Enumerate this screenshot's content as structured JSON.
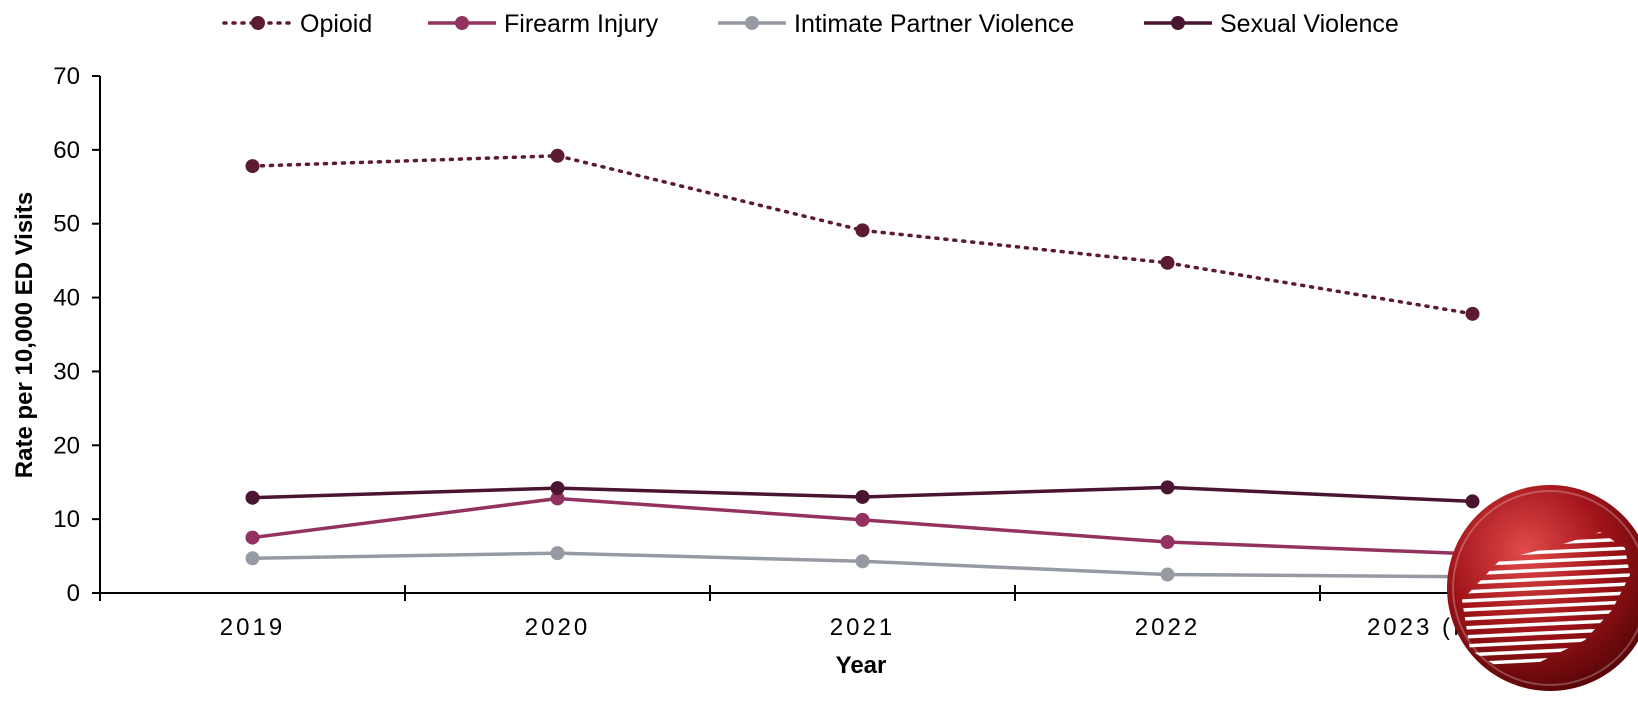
{
  "chart_data": {
    "type": "line",
    "title": "",
    "xlabel": "Year",
    "ylabel": "Rate per 10,000 ED Visits",
    "categories": [
      "2019",
      "2020",
      "2021",
      "2022",
      "2023 (first half)"
    ],
    "ylim": [
      0,
      70
    ],
    "yticks": [
      0,
      10,
      20,
      30,
      40,
      50,
      60,
      70
    ],
    "grid": false,
    "legend_position": "top-center",
    "series": [
      {
        "name": "Opioid",
        "values": [
          57.8,
          59.2,
          49.1,
          44.7,
          37.8
        ],
        "color": "#5c1a33",
        "dash": "dotted"
      },
      {
        "name": "Firearm Injury",
        "values": [
          7.5,
          12.8,
          9.9,
          6.9,
          5.3
        ],
        "color": "#93325f",
        "dash": "solid"
      },
      {
        "name": "Intimate Partner Violence",
        "values": [
          4.7,
          5.4,
          4.3,
          2.5,
          2.2
        ],
        "color": "#969ba3",
        "dash": "solid"
      },
      {
        "name": "Sexual Violence",
        "values": [
          12.9,
          14.2,
          13.0,
          14.3,
          12.4
        ],
        "color": "#4a1530",
        "dash": "solid"
      }
    ]
  },
  "logo": {
    "name": "seal-logo",
    "color": "#a01419"
  }
}
